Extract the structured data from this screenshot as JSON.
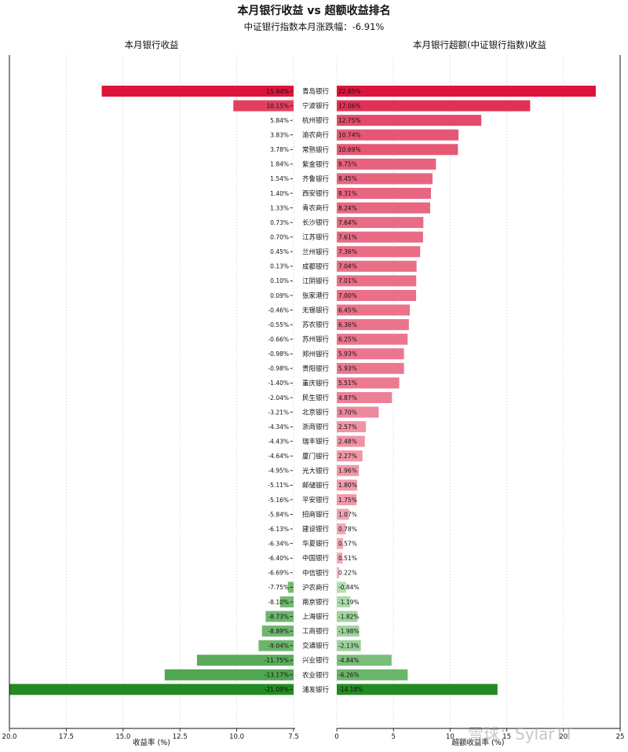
{
  "chart_data": {
    "type": "bar",
    "title": "本月银行收益 vs 超额收益排名",
    "subtitle": "中证银行指数本月涨跌幅：-6.91%",
    "left_panel_title": "本月银行收益",
    "right_panel_title": "本月银行超额(中证银行指数)收益",
    "left_xlabel": "收益率 (%)",
    "right_xlabel": "超额收益率 (%)",
    "left_xlim": [
      -20,
      -7.5
    ],
    "left_xticks": [
      "20.0",
      "17.5",
      "15.0",
      "12.5",
      "10.0",
      "7.5"
    ],
    "right_xlim": [
      0,
      25
    ],
    "right_xticks": [
      "0",
      "5",
      "10",
      "15",
      "20",
      "25"
    ],
    "grid": true,
    "colors": {
      "positive_strong": "#dc143c",
      "positive_light": "#f4b6c2",
      "negative_light": "#c8ebc8",
      "negative_strong": "#228b22"
    },
    "categories": [
      "青岛银行",
      "宁波银行",
      "杭州银行",
      "渝农商行",
      "常熟银行",
      "紫金银行",
      "齐鲁银行",
      "西安银行",
      "青农商行",
      "长沙银行",
      "江苏银行",
      "兰州银行",
      "成都银行",
      "江阴银行",
      "张家港行",
      "无锡银行",
      "苏农银行",
      "苏州银行",
      "郑州银行",
      "贵阳银行",
      "重庆银行",
      "民生银行",
      "北京银行",
      "浙商银行",
      "瑞丰银行",
      "厦门银行",
      "光大银行",
      "邮储银行",
      "平安银行",
      "招商银行",
      "建设银行",
      "华夏银行",
      "中国银行",
      "中信银行",
      "沪农商行",
      "南京银行",
      "上海银行",
      "工商银行",
      "交通银行",
      "兴业银行",
      "农业银行",
      "浦发银行"
    ],
    "series": [
      {
        "name": "",
        "values": [
          15.94,
          10.15,
          5.84,
          3.83,
          3.78,
          1.84,
          1.54,
          1.4,
          1.33,
          0.73,
          0.7,
          0.45,
          0.13,
          0.1,
          0.09,
          -0.46,
          -0.55,
          -0.66,
          -0.98,
          -0.98,
          -1.4,
          -2.04,
          -3.21,
          -4.34,
          -4.43,
          -4.64,
          -4.95,
          -5.11,
          -5.16,
          -5.84,
          -6.13,
          -6.34,
          -6.4,
          -6.69,
          -7.75,
          -8.1,
          -8.73,
          -8.89,
          -9.04,
          -11.75,
          -13.17,
          -21.09
        ]
      },
      {
        "name": "",
        "values": [
          22.85,
          17.06,
          12.75,
          10.74,
          10.69,
          8.75,
          8.45,
          8.31,
          8.24,
          7.64,
          7.61,
          7.36,
          7.04,
          7.01,
          7.0,
          6.45,
          6.36,
          6.25,
          5.93,
          5.93,
          5.51,
          4.87,
          3.7,
          2.57,
          2.48,
          2.27,
          1.96,
          1.8,
          1.75,
          1.07,
          0.78,
          0.57,
          0.51,
          0.22,
          -0.84,
          -1.19,
          -1.82,
          -1.98,
          -2.13,
          -4.84,
          -6.26,
          -14.18
        ]
      }
    ],
    "left_value_labels": [
      "15.94%",
      "10.15%",
      "5.84%",
      "3.83%",
      "3.78%",
      "1.84%",
      "1.54%",
      "1.40%",
      "1.33%",
      "0.73%",
      "0.70%",
      "0.45%",
      "0.13%",
      "0.10%",
      "0.09%",
      "-0.46%",
      "-0.55%",
      "-0.66%",
      "-0.98%",
      "-0.98%",
      "-1.40%",
      "-2.04%",
      "-3.21%",
      "-4.34%",
      "-4.43%",
      "-4.64%",
      "-4.95%",
      "-5.11%",
      "-5.16%",
      "-5.84%",
      "-6.13%",
      "-6.34%",
      "-6.40%",
      "-6.69%",
      "-7.75%",
      "-8.10%",
      "-8.73%",
      "-8.89%",
      "-9.04%",
      "-11.75%",
      "-13.17%",
      "-21.09%"
    ],
    "right_value_labels": [
      "22.85%",
      "17.06%",
      "12.75%",
      "10.74%",
      "10.69%",
      "8.75%",
      "8.45%",
      "8.31%",
      "8.24%",
      "7.64%",
      "7.61%",
      "7.36%",
      "7.04%",
      "7.01%",
      "7.00%",
      "6.45%",
      "6.36%",
      "6.25%",
      "5.93%",
      "5.93%",
      "5.51%",
      "4.87%",
      "3.70%",
      "2.57%",
      "2.48%",
      "2.27%",
      "1.96%",
      "1.80%",
      "1.75%",
      "1.07%",
      "0.78%",
      "0.57%",
      "0.51%",
      "0.22%",
      "-0.84%",
      "-1.19%",
      "-1.82%",
      "-1.98%",
      "-2.13%",
      "-4.84%",
      "-6.26%",
      "-14.18%"
    ]
  },
  "watermark": "雪球：SylarTT"
}
